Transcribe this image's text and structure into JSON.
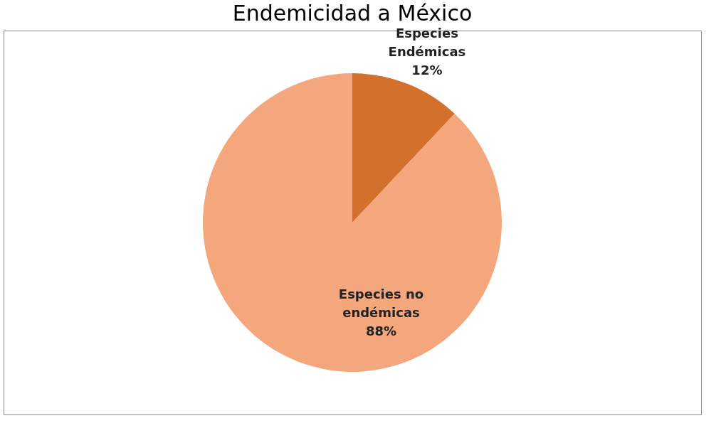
{
  "chart_data": {
    "type": "pie",
    "title": "Endemicidad a México",
    "categories": [
      "Especies Endémicas",
      "Especies no endémicas"
    ],
    "values": [
      12,
      88
    ],
    "value_labels": [
      "12%",
      "88%"
    ],
    "colors": [
      "#d2702c",
      "#f4a77c"
    ],
    "legend": false
  }
}
